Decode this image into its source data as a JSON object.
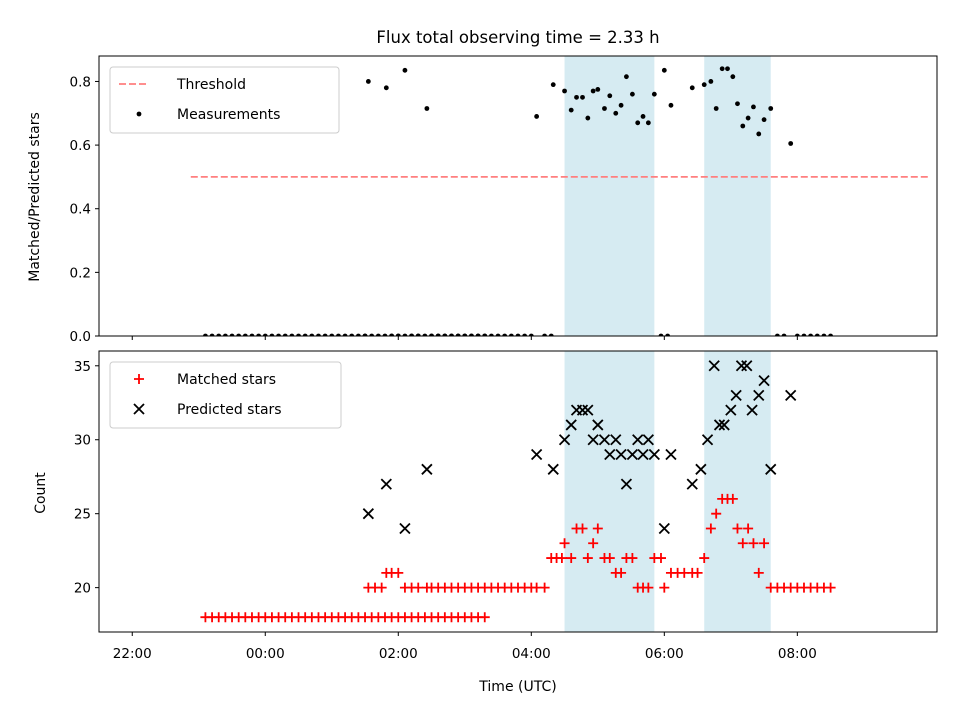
{
  "chart_data": [
    {
      "type": "scatter",
      "title": "Flux total observing time = 2.33 h",
      "ylabel": "Matched/Predicted stars",
      "ylim": [
        0,
        0.88
      ],
      "yticks": [
        "0.0",
        "0.2",
        "0.4",
        "0.6",
        "0.8"
      ],
      "xlim": [
        -2.5,
        10.1
      ],
      "threshold": {
        "name": "Threshold",
        "value": 0.5,
        "x_range": [
          -1.12,
          10.0
        ],
        "color": "#ff7f7f"
      },
      "shaded_intervals": [
        [
          4.5,
          5.85
        ],
        [
          6.6,
          7.6
        ]
      ],
      "shade_color": "#add8e6",
      "series": [
        {
          "name": "Measurements",
          "color": "#000000",
          "zero_points": {
            "x_start": -0.9,
            "x_step": 0.1,
            "count": 43
          },
          "points": [
            {
              "x": 1.55,
              "y": 0.8
            },
            {
              "x": 1.82,
              "y": 0.78
            },
            {
              "x": 2.1,
              "y": 0.835
            },
            {
              "x": 2.43,
              "y": 0.715
            },
            {
              "x": 4.08,
              "y": 0.69
            },
            {
              "x": 4.33,
              "y": 0.79
            },
            {
              "x": 4.5,
              "y": 0.77
            },
            {
              "x": 4.6,
              "y": 0.71
            },
            {
              "x": 4.68,
              "y": 0.75
            },
            {
              "x": 4.77,
              "y": 0.75
            },
            {
              "x": 4.85,
              "y": 0.685
            },
            {
              "x": 4.93,
              "y": 0.77
            },
            {
              "x": 5.0,
              "y": 0.775
            },
            {
              "x": 5.1,
              "y": 0.715
            },
            {
              "x": 5.18,
              "y": 0.755
            },
            {
              "x": 5.27,
              "y": 0.7
            },
            {
              "x": 5.35,
              "y": 0.725
            },
            {
              "x": 5.43,
              "y": 0.815
            },
            {
              "x": 5.52,
              "y": 0.76
            },
            {
              "x": 5.6,
              "y": 0.67
            },
            {
              "x": 5.68,
              "y": 0.69
            },
            {
              "x": 5.76,
              "y": 0.67
            },
            {
              "x": 5.85,
              "y": 0.76
            },
            {
              "x": 6.0,
              "y": 0.835
            },
            {
              "x": 6.1,
              "y": 0.725
            },
            {
              "x": 6.42,
              "y": 0.78
            },
            {
              "x": 6.6,
              "y": 0.79
            },
            {
              "x": 6.7,
              "y": 0.8
            },
            {
              "x": 6.78,
              "y": 0.715
            },
            {
              "x": 6.87,
              "y": 0.84
            },
            {
              "x": 6.95,
              "y": 0.84
            },
            {
              "x": 7.03,
              "y": 0.815
            },
            {
              "x": 7.1,
              "y": 0.73
            },
            {
              "x": 7.18,
              "y": 0.66
            },
            {
              "x": 7.26,
              "y": 0.685
            },
            {
              "x": 7.34,
              "y": 0.72
            },
            {
              "x": 7.42,
              "y": 0.635
            },
            {
              "x": 7.5,
              "y": 0.68
            },
            {
              "x": 7.6,
              "y": 0.715
            },
            {
              "x": 7.9,
              "y": 0.605
            },
            {
              "x": 1.5,
              "y": 0
            },
            {
              "x": 1.9,
              "y": 0
            },
            {
              "x": 2.0,
              "y": 0
            },
            {
              "x": 2.2,
              "y": 0
            },
            {
              "x": 2.3,
              "y": 0
            },
            {
              "x": 2.5,
              "y": 0
            },
            {
              "x": 2.6,
              "y": 0
            },
            {
              "x": 2.7,
              "y": 0
            },
            {
              "x": 2.8,
              "y": 0
            },
            {
              "x": 2.9,
              "y": 0
            },
            {
              "x": 3.0,
              "y": 0
            },
            {
              "x": 3.1,
              "y": 0
            },
            {
              "x": 3.2,
              "y": 0
            },
            {
              "x": 3.3,
              "y": 0
            },
            {
              "x": 3.4,
              "y": 0
            },
            {
              "x": 3.5,
              "y": 0
            },
            {
              "x": 3.6,
              "y": 0
            },
            {
              "x": 3.7,
              "y": 0
            },
            {
              "x": 3.8,
              "y": 0
            },
            {
              "x": 3.9,
              "y": 0
            },
            {
              "x": 4.0,
              "y": 0
            },
            {
              "x": 4.2,
              "y": 0
            },
            {
              "x": 4.3,
              "y": 0
            },
            {
              "x": 5.95,
              "y": 0
            },
            {
              "x": 6.05,
              "y": 0
            },
            {
              "x": 7.7,
              "y": 0
            },
            {
              "x": 7.8,
              "y": 0
            },
            {
              "x": 8.0,
              "y": 0
            },
            {
              "x": 8.1,
              "y": 0
            },
            {
              "x": 8.2,
              "y": 0
            },
            {
              "x": 8.3,
              "y": 0
            },
            {
              "x": 8.4,
              "y": 0
            },
            {
              "x": 8.5,
              "y": 0
            }
          ]
        }
      ]
    },
    {
      "type": "scatter",
      "xlabel": "Time (UTC)",
      "ylabel": "Count",
      "ylim": [
        17,
        36
      ],
      "yticks": [
        "20",
        "25",
        "30",
        "35"
      ],
      "xlim": [
        -2.5,
        10.1
      ],
      "xticks": [
        {
          "x": -2,
          "label": "22:00"
        },
        {
          "x": 0,
          "label": "00:00"
        },
        {
          "x": 2,
          "label": "02:00"
        },
        {
          "x": 4,
          "label": "04:00"
        },
        {
          "x": 6,
          "label": "06:00"
        },
        {
          "x": 8,
          "label": "08:00"
        }
      ],
      "shaded_intervals": [
        [
          4.5,
          5.85
        ],
        [
          6.6,
          7.6
        ]
      ],
      "shade_color": "#add8e6",
      "series": [
        {
          "name": "Matched stars",
          "color": "#ff0000",
          "baseline": {
            "x_start": -0.9,
            "x_step": 0.1,
            "count": 43,
            "y": 18
          },
          "points": [
            {
              "x": 1.55,
              "y": 20
            },
            {
              "x": 1.65,
              "y": 20
            },
            {
              "x": 1.75,
              "y": 20
            },
            {
              "x": 1.82,
              "y": 21
            },
            {
              "x": 1.9,
              "y": 21
            },
            {
              "x": 2.0,
              "y": 21
            },
            {
              "x": 2.1,
              "y": 20
            },
            {
              "x": 2.2,
              "y": 20
            },
            {
              "x": 2.3,
              "y": 20
            },
            {
              "x": 2.43,
              "y": 20
            },
            {
              "x": 2.5,
              "y": 20
            },
            {
              "x": 2.6,
              "y": 20
            },
            {
              "x": 2.7,
              "y": 20
            },
            {
              "x": 2.8,
              "y": 20
            },
            {
              "x": 2.9,
              "y": 20
            },
            {
              "x": 3.0,
              "y": 20
            },
            {
              "x": 3.1,
              "y": 20
            },
            {
              "x": 3.2,
              "y": 20
            },
            {
              "x": 3.3,
              "y": 20
            },
            {
              "x": 3.4,
              "y": 20
            },
            {
              "x": 3.5,
              "y": 20
            },
            {
              "x": 3.6,
              "y": 20
            },
            {
              "x": 3.7,
              "y": 20
            },
            {
              "x": 3.8,
              "y": 20
            },
            {
              "x": 3.9,
              "y": 20
            },
            {
              "x": 4.0,
              "y": 20
            },
            {
              "x": 4.08,
              "y": 20
            },
            {
              "x": 4.2,
              "y": 20
            },
            {
              "x": 4.3,
              "y": 22
            },
            {
              "x": 4.38,
              "y": 22
            },
            {
              "x": 4.46,
              "y": 22
            },
            {
              "x": 4.5,
              "y": 23
            },
            {
              "x": 4.6,
              "y": 22
            },
            {
              "x": 4.68,
              "y": 24
            },
            {
              "x": 4.77,
              "y": 24
            },
            {
              "x": 4.85,
              "y": 22
            },
            {
              "x": 4.93,
              "y": 23
            },
            {
              "x": 5.0,
              "y": 24
            },
            {
              "x": 5.1,
              "y": 22
            },
            {
              "x": 5.18,
              "y": 22
            },
            {
              "x": 5.27,
              "y": 21
            },
            {
              "x": 5.35,
              "y": 21
            },
            {
              "x": 5.43,
              "y": 22
            },
            {
              "x": 5.52,
              "y": 22
            },
            {
              "x": 5.6,
              "y": 20
            },
            {
              "x": 5.68,
              "y": 20
            },
            {
              "x": 5.76,
              "y": 20
            },
            {
              "x": 5.85,
              "y": 22
            },
            {
              "x": 5.95,
              "y": 22
            },
            {
              "x": 6.0,
              "y": 20
            },
            {
              "x": 6.1,
              "y": 21
            },
            {
              "x": 6.2,
              "y": 21
            },
            {
              "x": 6.3,
              "y": 21
            },
            {
              "x": 6.42,
              "y": 21
            },
            {
              "x": 6.5,
              "y": 21
            },
            {
              "x": 6.6,
              "y": 22
            },
            {
              "x": 6.7,
              "y": 24
            },
            {
              "x": 6.78,
              "y": 25
            },
            {
              "x": 6.87,
              "y": 26
            },
            {
              "x": 6.95,
              "y": 26
            },
            {
              "x": 7.03,
              "y": 26
            },
            {
              "x": 7.1,
              "y": 24
            },
            {
              "x": 7.18,
              "y": 23
            },
            {
              "x": 7.26,
              "y": 24
            },
            {
              "x": 7.34,
              "y": 23
            },
            {
              "x": 7.42,
              "y": 21
            },
            {
              "x": 7.5,
              "y": 23
            },
            {
              "x": 7.6,
              "y": 20
            },
            {
              "x": 7.7,
              "y": 20
            },
            {
              "x": 7.8,
              "y": 20
            },
            {
              "x": 7.9,
              "y": 20
            },
            {
              "x": 8.0,
              "y": 20
            },
            {
              "x": 8.1,
              "y": 20
            },
            {
              "x": 8.2,
              "y": 20
            },
            {
              "x": 8.3,
              "y": 20
            },
            {
              "x": 8.4,
              "y": 20
            },
            {
              "x": 8.5,
              "y": 20
            }
          ]
        },
        {
          "name": "Predicted stars",
          "color": "#000000",
          "points": [
            {
              "x": 1.55,
              "y": 25
            },
            {
              "x": 1.82,
              "y": 27
            },
            {
              "x": 2.1,
              "y": 24
            },
            {
              "x": 2.43,
              "y": 28
            },
            {
              "x": 4.08,
              "y": 29
            },
            {
              "x": 4.33,
              "y": 28
            },
            {
              "x": 4.5,
              "y": 30
            },
            {
              "x": 4.6,
              "y": 31
            },
            {
              "x": 4.68,
              "y": 32
            },
            {
              "x": 4.77,
              "y": 32
            },
            {
              "x": 4.85,
              "y": 32
            },
            {
              "x": 4.93,
              "y": 30
            },
            {
              "x": 5.0,
              "y": 31
            },
            {
              "x": 5.1,
              "y": 30
            },
            {
              "x": 5.18,
              "y": 29
            },
            {
              "x": 5.27,
              "y": 30
            },
            {
              "x": 5.35,
              "y": 29
            },
            {
              "x": 5.43,
              "y": 27
            },
            {
              "x": 5.52,
              "y": 29
            },
            {
              "x": 5.6,
              "y": 30
            },
            {
              "x": 5.68,
              "y": 29
            },
            {
              "x": 5.76,
              "y": 30
            },
            {
              "x": 5.85,
              "y": 29
            },
            {
              "x": 6.0,
              "y": 24
            },
            {
              "x": 6.1,
              "y": 29
            },
            {
              "x": 6.42,
              "y": 27
            },
            {
              "x": 6.55,
              "y": 28
            },
            {
              "x": 6.65,
              "y": 30
            },
            {
              "x": 6.75,
              "y": 35
            },
            {
              "x": 6.83,
              "y": 31
            },
            {
              "x": 6.9,
              "y": 31
            },
            {
              "x": 7.0,
              "y": 32
            },
            {
              "x": 7.08,
              "y": 33
            },
            {
              "x": 7.16,
              "y": 35
            },
            {
              "x": 7.24,
              "y": 35
            },
            {
              "x": 7.32,
              "y": 32
            },
            {
              "x": 7.42,
              "y": 33
            },
            {
              "x": 7.5,
              "y": 34
            },
            {
              "x": 7.6,
              "y": 28
            },
            {
              "x": 7.9,
              "y": 33
            }
          ]
        }
      ]
    }
  ]
}
